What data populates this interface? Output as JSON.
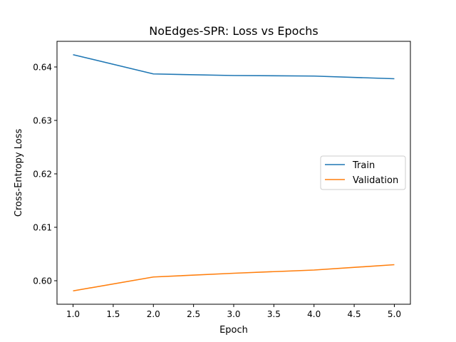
{
  "chart_data": {
    "type": "line",
    "title": "NoEdges-SPR: Loss vs Epochs",
    "xlabel": "Epoch",
    "ylabel": "Cross-Entropy Loss",
    "xlim": [
      0.8,
      5.2
    ],
    "ylim": [
      0.5956,
      0.6448
    ],
    "xticks": [
      1.0,
      1.5,
      2.0,
      2.5,
      3.0,
      3.5,
      4.0,
      4.5,
      5.0
    ],
    "xtick_labels": [
      "1.0",
      "1.5",
      "2.0",
      "2.5",
      "3.0",
      "3.5",
      "4.0",
      "4.5",
      "5.0"
    ],
    "yticks": [
      0.6,
      0.61,
      0.62,
      0.63,
      0.64
    ],
    "ytick_labels": [
      "0.60",
      "0.61",
      "0.62",
      "0.63",
      "0.64"
    ],
    "grid": false,
    "legend": "center-right",
    "x": [
      1,
      2,
      3,
      4,
      5
    ],
    "series": [
      {
        "name": "Train",
        "color": "#1f77b4",
        "values": [
          0.6423,
          0.6387,
          0.6384,
          0.6383,
          0.6378
        ]
      },
      {
        "name": "Validation",
        "color": "#ff7f0e",
        "values": [
          0.5981,
          0.6007,
          0.6014,
          0.602,
          0.603
        ]
      }
    ]
  }
}
